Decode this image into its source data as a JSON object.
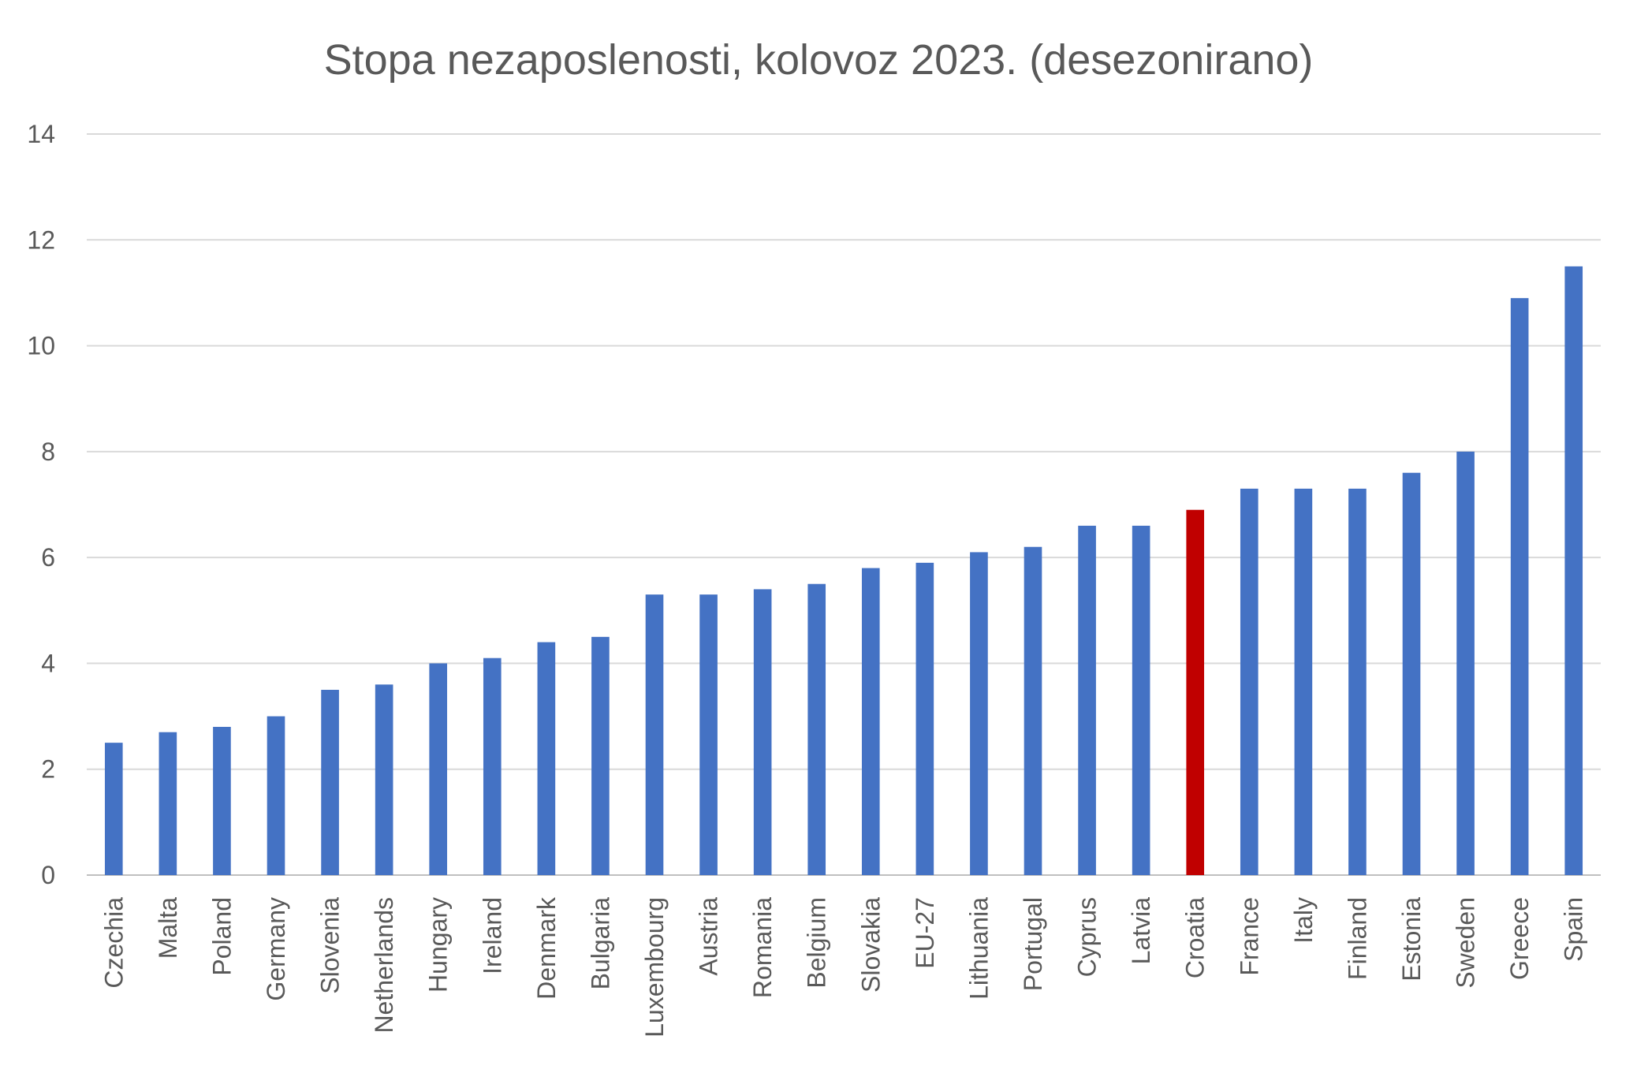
{
  "chart_data": {
    "type": "bar",
    "title": "Stopa nezaposlenosti, kolovoz 2023. (desezonirano)",
    "xlabel": "",
    "ylabel": "",
    "ylim": [
      0,
      14
    ],
    "yticks": [
      "0",
      "2",
      "4",
      "6",
      "8",
      "10",
      "12",
      "14"
    ],
    "grid": true,
    "legend": "none",
    "categories": [
      "Czechia",
      "Malta",
      "Poland",
      "Germany",
      "Slovenia",
      "Netherlands",
      "Hungary",
      "Ireland",
      "Denmark",
      "Bulgaria",
      "Luxembourg",
      "Austria",
      "Romania",
      "Belgium",
      "Slovakia",
      "EU-27",
      "Lithuania",
      "Portugal",
      "Cyprus",
      "Latvia",
      "Croatia",
      "France",
      "Italy",
      "Finland",
      "Estonia",
      "Sweden",
      "Greece",
      "Spain"
    ],
    "values": [
      2.5,
      2.7,
      2.8,
      3.0,
      3.5,
      3.6,
      4.0,
      4.1,
      4.4,
      4.5,
      5.3,
      5.3,
      5.4,
      5.5,
      5.8,
      5.9,
      6.1,
      6.2,
      6.6,
      6.6,
      6.9,
      7.3,
      7.3,
      7.3,
      7.6,
      8.0,
      10.9,
      11.5
    ],
    "colors": {
      "default": "#4472C4",
      "highlight": "#C00000"
    },
    "highlight_category": "Croatia"
  }
}
